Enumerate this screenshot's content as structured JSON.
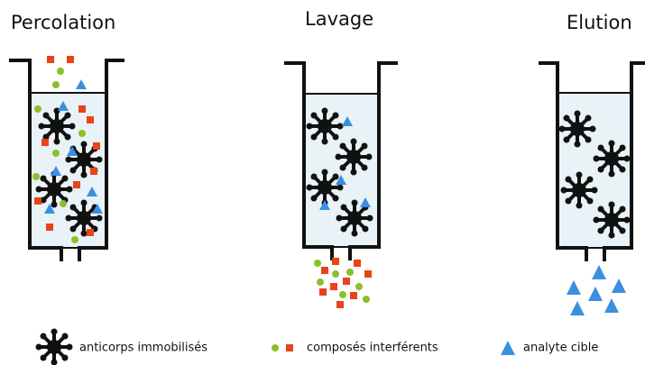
{
  "steps": [
    {
      "title": "Percolation"
    },
    {
      "title": "Lavage"
    },
    {
      "title": "Elution"
    }
  ],
  "legend": {
    "antibody": "anticorps immobilisés",
    "interferents": "composés interférents",
    "analyte": "analyte cible"
  }
}
